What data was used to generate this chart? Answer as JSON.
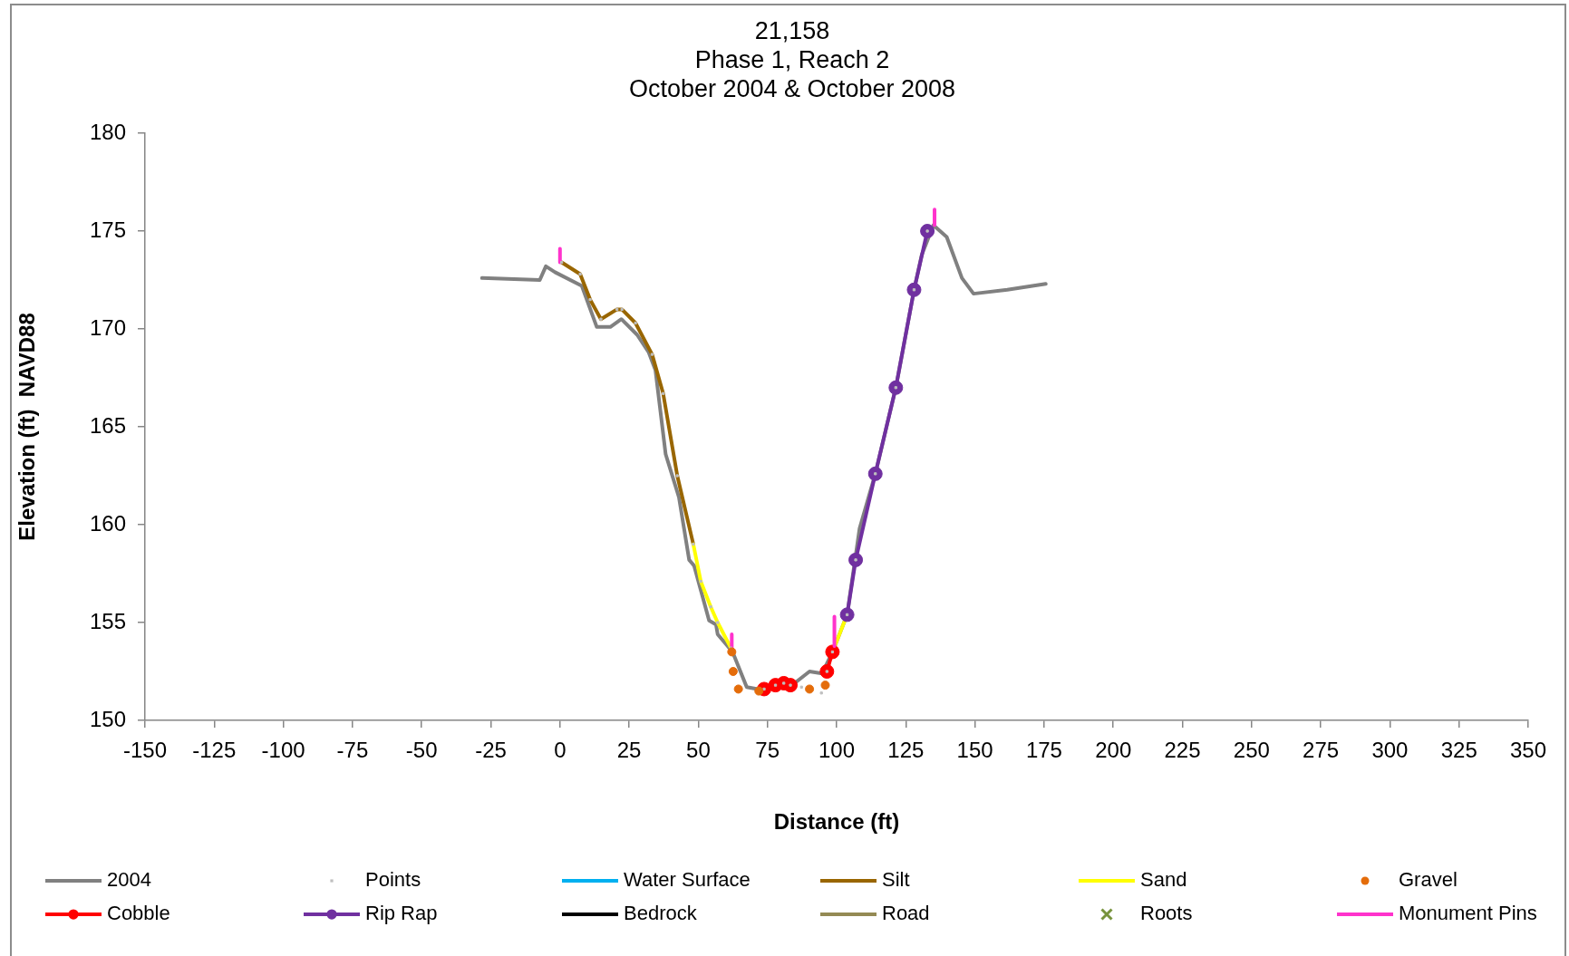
{
  "chart_data": {
    "type": "line",
    "title": "21,158\nPhase 1, Reach 2\nOctober 2004 & October 2008",
    "xlabel": "Distance (ft)",
    "ylabel": "Elevation (ft)  NAVD88",
    "xlim": [
      -150,
      350
    ],
    "xticks": [
      -150,
      -125,
      -100,
      -75,
      -50,
      -25,
      0,
      25,
      50,
      75,
      100,
      125,
      150,
      175,
      200,
      225,
      250,
      275,
      300,
      325,
      350
    ],
    "ylim": [
      150,
      180
    ],
    "yticks": [
      150,
      155,
      160,
      165,
      170,
      175,
      180
    ],
    "grid": false,
    "legend": "bottom",
    "line_style": "solid",
    "series": [
      {
        "name": "2004",
        "type": "line",
        "color": "#808080",
        "x": [
          -28.2,
          -7.3,
          -5.1,
          -1.8,
          7.9,
          13.3,
          18.2,
          22.2,
          27.9,
          32.1,
          34.5,
          38.2,
          43.0,
          46.7,
          48.5,
          53.9,
          56.4,
          57.0,
          62.4,
          67.5,
          71.5,
          83.0,
          90.2,
          94.8,
          98.5,
          103.8,
          108.3,
          114.0,
          119.2,
          121.4,
          128.0,
          130.8,
          135.0,
          139.8,
          145.3,
          149.5,
          161.7,
          175.6
        ],
        "values": [
          172.6,
          172.5,
          173.2,
          172.9,
          172.2,
          170.1,
          170.1,
          170.5,
          169.7,
          168.8,
          167.9,
          163.6,
          161.4,
          158.2,
          157.9,
          155.1,
          154.9,
          154.4,
          153.5,
          151.7,
          151.6,
          151.7,
          152.5,
          152.4,
          153.5,
          155.4,
          159.8,
          162.6,
          165.7,
          167.0,
          172.0,
          173.8,
          175.3,
          174.7,
          172.6,
          171.8,
          172.0,
          172.3
        ]
      },
      {
        "name": "Points",
        "type": "scatter",
        "marker": "square",
        "color": "#bfbfbf",
        "x": [
          0.6,
          7.3,
          10.9,
          14.8,
          20.6,
          22.4,
          27.3,
          33.3,
          37.3,
          42.4,
          48.2,
          50.9,
          54.5,
          57.0,
          61.8,
          73.8,
          77.9,
          80.9,
          83.3,
          87.3,
          94.5,
          96.5,
          98.5,
          103.8,
          106.9,
          114.0,
          121.4,
          128.0,
          132.8
        ],
        "values": [
          173.4,
          172.8,
          171.5,
          170.5,
          171.0,
          171.0,
          170.3,
          168.7,
          166.7,
          162.5,
          159.0,
          157.1,
          155.8,
          155.0,
          153.7,
          151.6,
          151.8,
          151.9,
          151.8,
          151.7,
          151.4,
          152.5,
          153.5,
          155.4,
          158.2,
          162.6,
          167.0,
          172.0,
          175.0
        ]
      },
      {
        "name": "Water Surface",
        "type": "line",
        "color": "#00b0f0"
      },
      {
        "name": "Silt",
        "type": "line",
        "color": "#996600",
        "x": [
          0.6,
          7.3,
          10.9,
          14.8,
          20.6,
          22.4,
          27.3,
          33.3,
          37.3,
          42.4,
          48.2
        ],
        "values": [
          173.4,
          172.8,
          171.5,
          170.5,
          171.0,
          171.0,
          170.3,
          168.7,
          166.7,
          162.5,
          159.0
        ]
      },
      {
        "name": "Sand",
        "type": "line",
        "color": "#ffff00",
        "x": [
          48.2,
          50.9,
          54.5,
          57.0,
          61.8,
          80.0,
          98.5,
          103.8
        ],
        "values": [
          159.0,
          157.1,
          155.8,
          155.0,
          153.7,
          null,
          153.5,
          155.4
        ]
      },
      {
        "name": "Gravel",
        "type": "scatter",
        "marker": "circle",
        "color": "#e46c0a",
        "x": [
          62.1,
          62.6,
          64.5,
          71.9,
          90.2,
          95.9
        ],
        "values": [
          153.5,
          152.5,
          151.6,
          151.5,
          151.6,
          151.8
        ]
      },
      {
        "name": "Cobble",
        "type": "line",
        "marker": "circle",
        "color": "#ff0000",
        "x": [
          73.8,
          77.9,
          80.9,
          83.3,
          90.0,
          96.5,
          98.5
        ],
        "values": [
          151.6,
          151.8,
          151.9,
          151.8,
          null,
          152.5,
          153.5
        ]
      },
      {
        "name": "Rip Rap",
        "type": "line",
        "marker": "circle",
        "color": "#7030a0",
        "x": [
          103.8,
          106.9,
          114.0,
          121.4,
          128.0,
          132.8
        ],
        "values": [
          155.4,
          158.2,
          162.6,
          167.0,
          172.0,
          175.0
        ]
      },
      {
        "name": "Bedrock",
        "type": "line",
        "color": "#000000"
      },
      {
        "name": "Road",
        "type": "line",
        "color": "#948a54"
      },
      {
        "name": "Roots",
        "type": "scatter",
        "marker": "cross",
        "color": "#77933c"
      },
      {
        "name": "Monument Pins",
        "type": "line",
        "color": "#ff33cc",
        "x": [
          0,
          0,
          31,
          62.1,
          62.1,
          80,
          99.2,
          99.2,
          117,
          135.4,
          135.4
        ],
        "values": [
          174.1,
          173.4,
          null,
          154.4,
          153.5,
          null,
          155.3,
          153.8,
          null,
          176.1,
          175.3
        ]
      }
    ]
  }
}
